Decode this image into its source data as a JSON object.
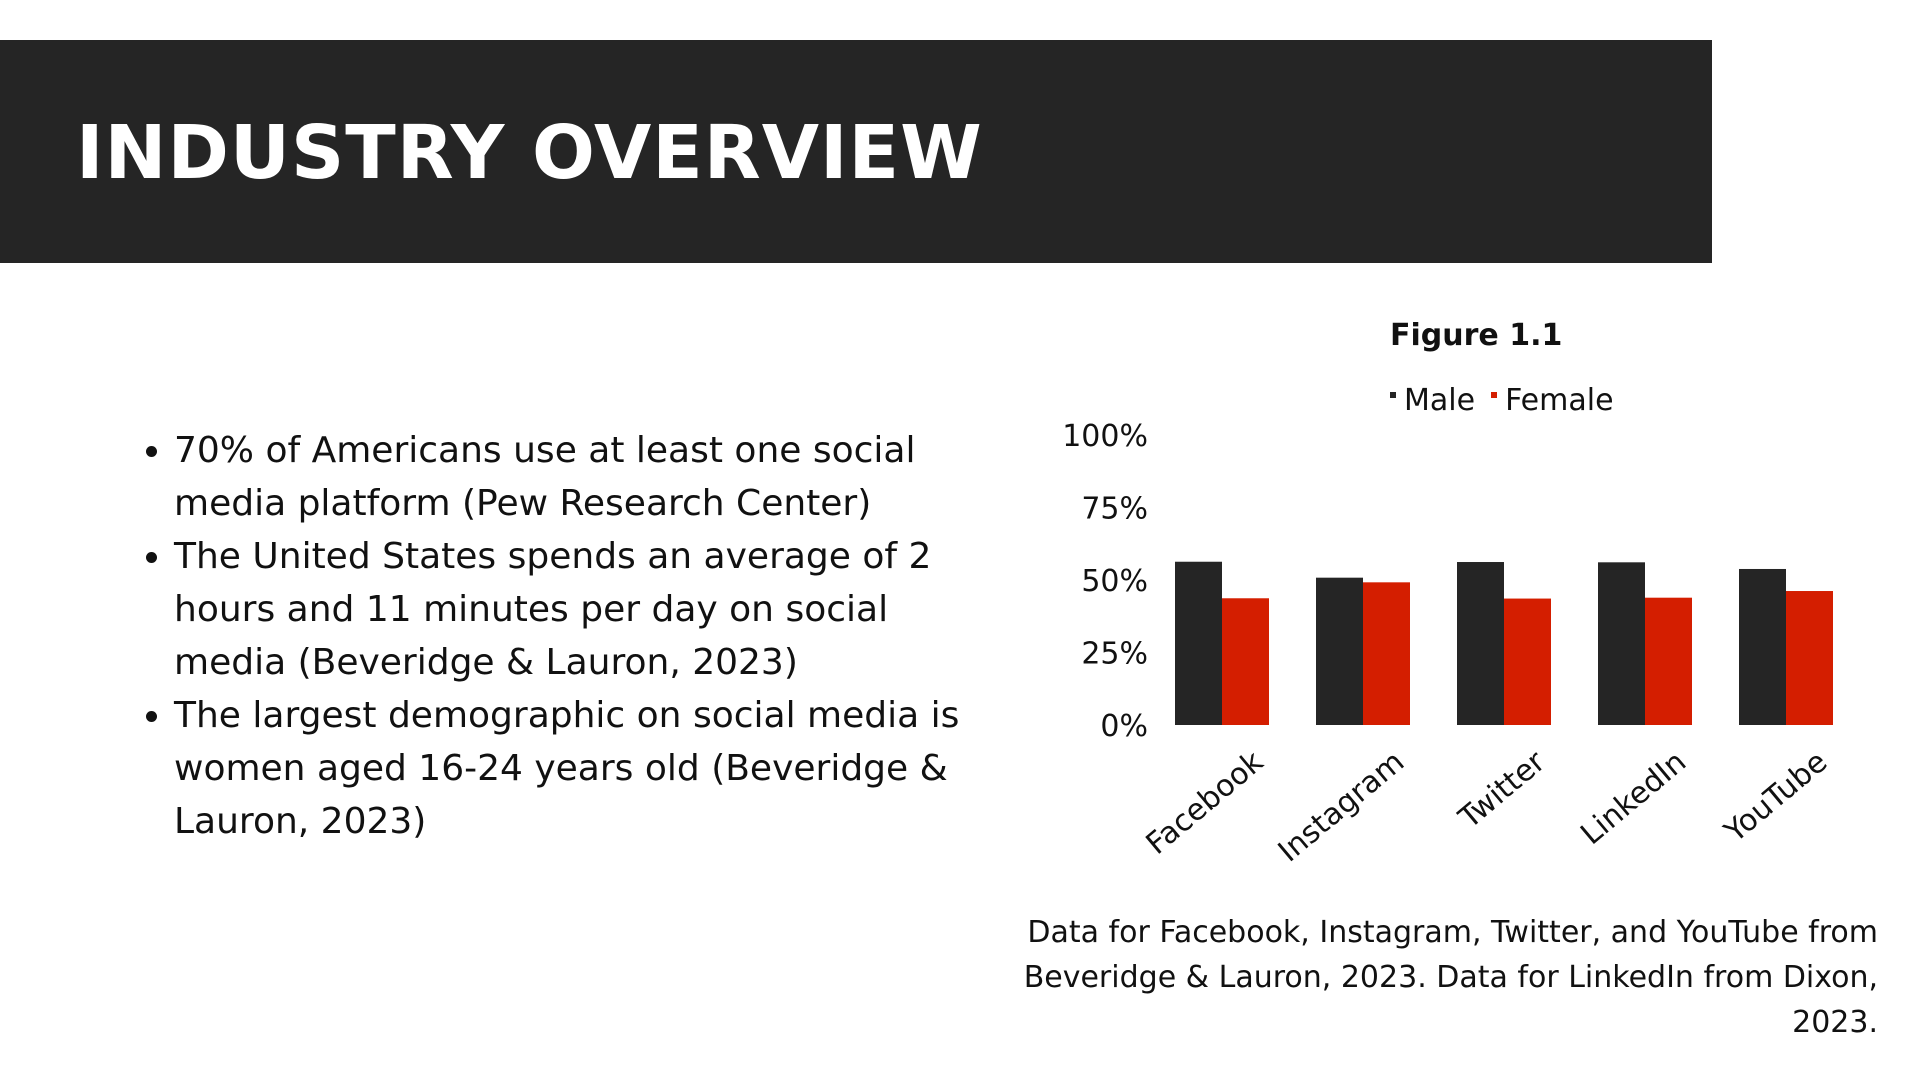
{
  "header": {
    "title": "INDUSTRY OVERVIEW"
  },
  "bullets": [
    "70% of Americans use at least one social media platform (Pew Research Center)",
    "The United States spends an average of 2 hours and 11 minutes per day on social media (Beveridge & Lauron, 2023)",
    "The largest demographic on social media is women aged 16-24 years old (Beveridge & Lauron, 2023)"
  ],
  "caption": "Data for Facebook, Instagram, Twitter, and YouTube from Beveridge & Lauron, 2023. Data for LinkedIn from Dixon, 2023.",
  "colors": {
    "header": "#252525",
    "male": "#252525",
    "female": "#d41e00"
  },
  "chart_data": {
    "type": "bar",
    "title": "Figure 1.1",
    "categories": [
      "Facebook",
      "Instagram",
      "Twitter",
      "LinkedIn",
      "YouTube"
    ],
    "series": [
      {
        "name": "Male",
        "values": [
          56.3,
          50.8,
          56.2,
          56.1,
          53.8
        ],
        "color": "#252525"
      },
      {
        "name": "Female",
        "values": [
          43.7,
          49.2,
          43.6,
          43.9,
          46.2
        ],
        "color": "#d41e00"
      }
    ],
    "yticks": [
      "0%",
      "25%",
      "50%",
      "75%",
      "100%"
    ],
    "ylim": [
      0,
      100
    ],
    "legend": "top",
    "grid": false
  }
}
